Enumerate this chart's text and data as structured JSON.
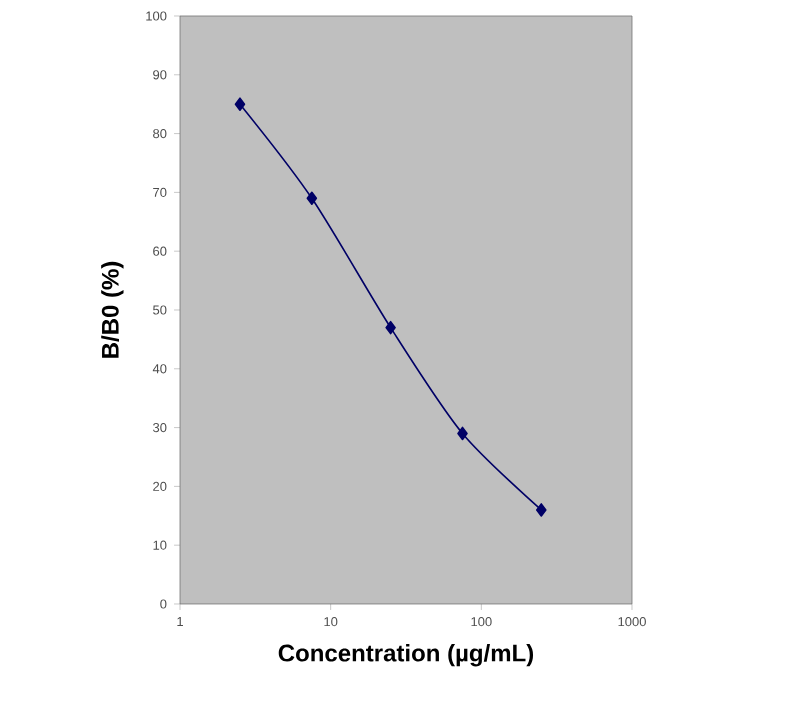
{
  "chart_data": {
    "type": "line",
    "xlabel": "Concentration (µg/mL)",
    "ylabel": "B/B0 (%)",
    "x": [
      2.5,
      7.5,
      25,
      75,
      250
    ],
    "series": [
      {
        "color": "#000066",
        "values": [
          85,
          69,
          47,
          29,
          16
        ]
      }
    ],
    "log": "x",
    "xlim": [
      1,
      1000
    ],
    "xticks": [
      1,
      10,
      100,
      1000
    ],
    "ylim": [
      0,
      100
    ],
    "yticks": [
      0,
      10,
      20,
      30,
      40,
      50,
      60,
      70,
      80,
      90,
      100
    ],
    "marker": "diamond",
    "line_style": "solid",
    "grid": false
  }
}
